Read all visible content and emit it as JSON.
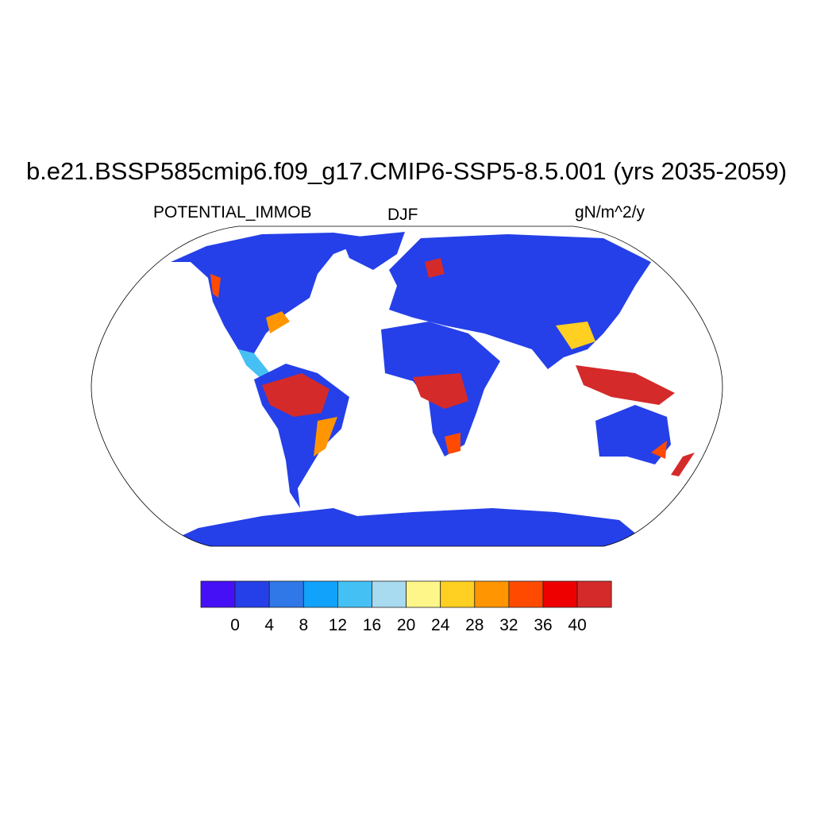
{
  "title": "b.e21.BSSP585cmip6.f09_g17.CMIP6-SSP5-8.5.001 (yrs 2035-2059)",
  "left_string": "POTENTIAL_IMMOB",
  "center_string": "DJF",
  "right_string": "gN/m^2/y",
  "colorbar": {
    "levels": [
      "0",
      "4",
      "8",
      "12",
      "16",
      "20",
      "24",
      "28",
      "32",
      "36",
      "40"
    ],
    "colors": [
      "#4510f5",
      "#2540e8",
      "#3077e8",
      "#11a2fb",
      "#45c0f5",
      "#a8daf0",
      "#fff68a",
      "#ffcf22",
      "#ff9500",
      "#ff4a00",
      "#ee0000",
      "#d42a2a"
    ]
  },
  "map": {
    "projection": "Robinson",
    "ocean_color": "#ffffff",
    "land_base_color": "#2540e8"
  }
}
